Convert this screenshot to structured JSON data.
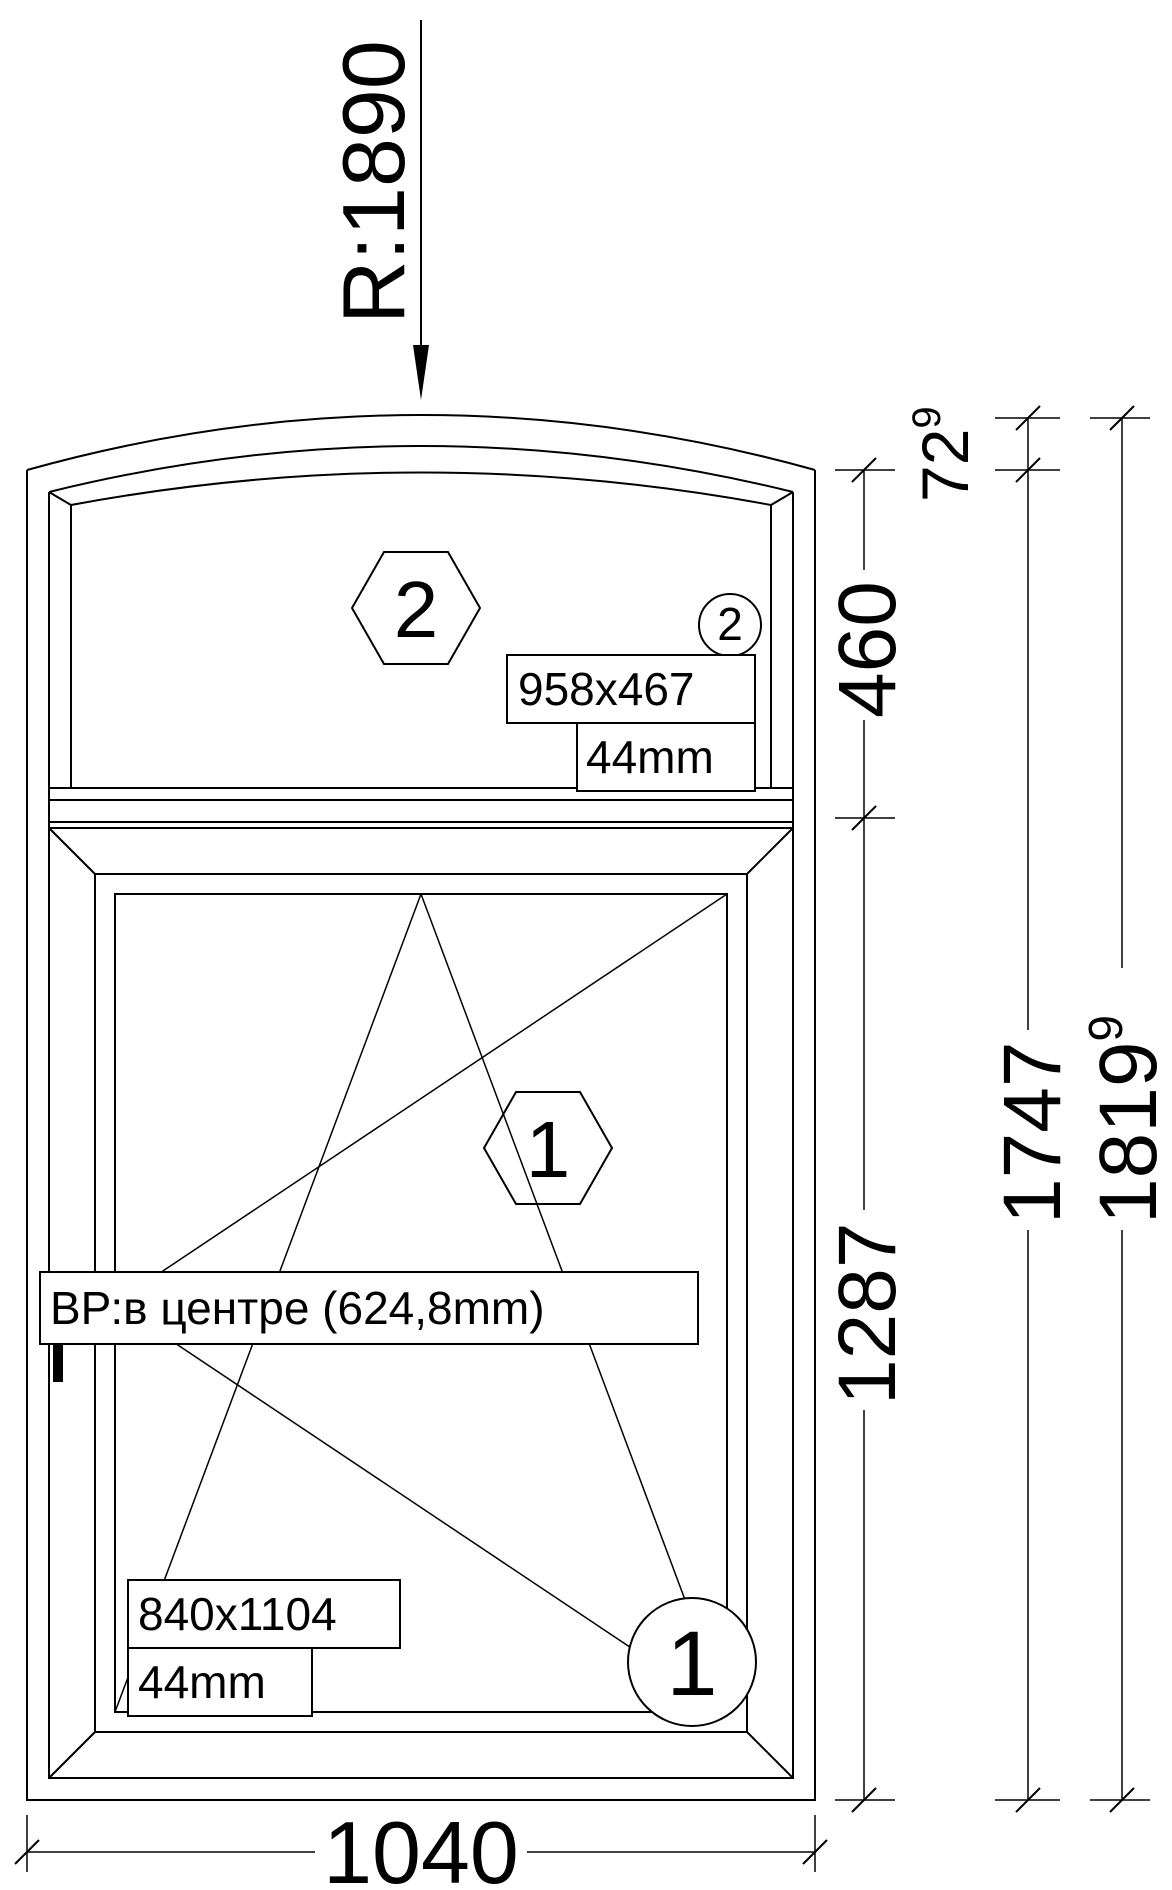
{
  "radius_label": "R:1890",
  "overall_width": "1040",
  "transom": {
    "marker": "2",
    "glass_marker": "2",
    "glass_size": "958x467",
    "glass_thickness": "44mm"
  },
  "sash": {
    "marker": "1",
    "glass_marker": "1",
    "glass_size": "840x1104",
    "glass_thickness": "44mm",
    "handle_note": "ВР:в центре (624,8mm)"
  },
  "dimensions": {
    "arc_rise": {
      "base": "72",
      "sup": "9"
    },
    "transom_height": "460",
    "sash_height": "1287",
    "side_height": "1747",
    "total_height": {
      "base": "1819",
      "sup": "9"
    }
  }
}
